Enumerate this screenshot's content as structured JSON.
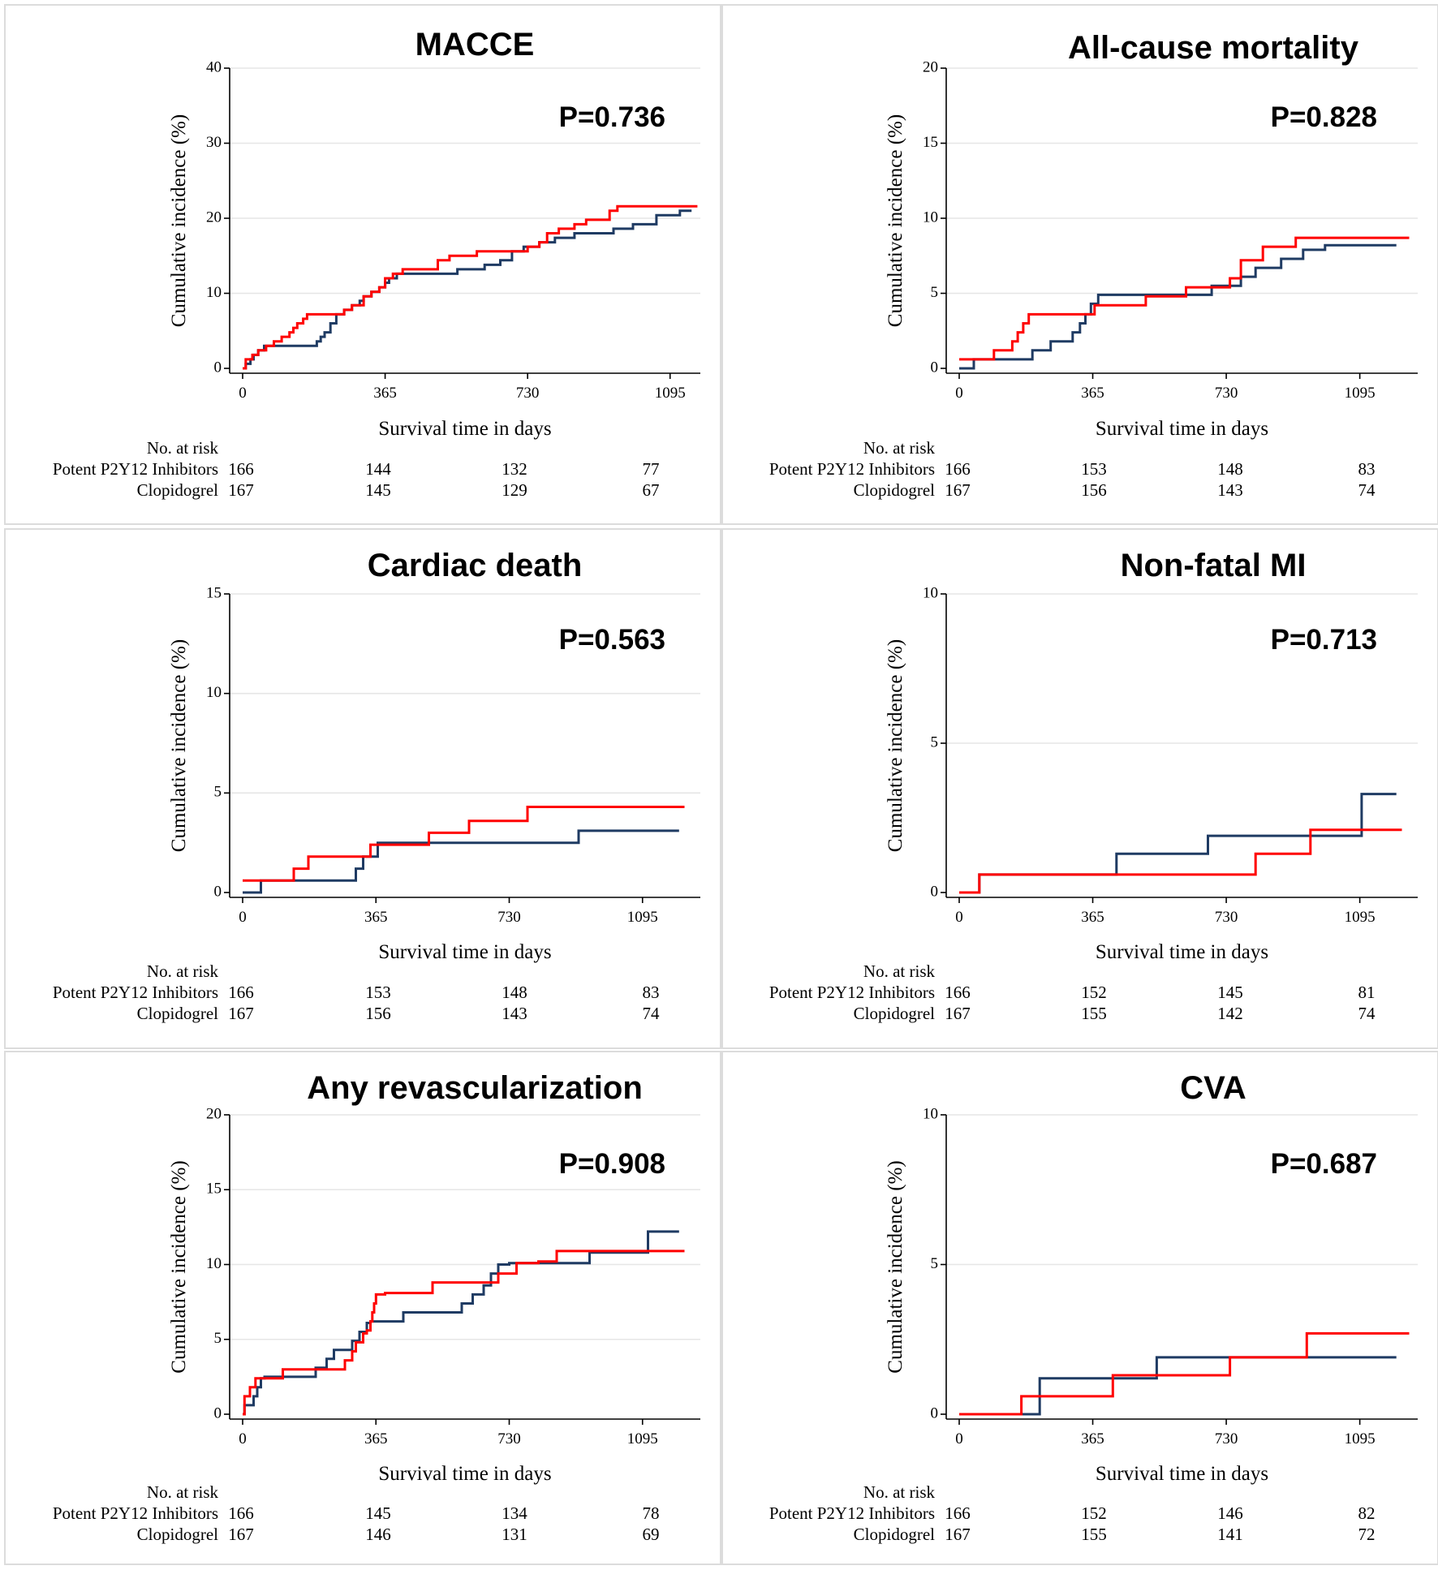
{
  "chart_data": [
    {
      "type": "line",
      "title": "MACCE",
      "pvalue": "P=0.736",
      "xlabel": "Survival time in days",
      "ylabel": "Cumulative incidence (%)",
      "xlim": [
        0,
        1160
      ],
      "ylim": [
        0,
        40
      ],
      "xticks": [
        0,
        365,
        730,
        1095
      ],
      "yticks": [
        0,
        10,
        20,
        30,
        40
      ],
      "risk_header": "No. at risk",
      "risk_rows": [
        {
          "label": "Potent P2Y12 Inhibitors",
          "values": [
            "166",
            "144",
            "132",
            "77"
          ]
        },
        {
          "label": "Clopidogrel",
          "values": [
            "167",
            "145",
            "129",
            "67"
          ]
        }
      ],
      "series": [
        {
          "name": "Clopidogrel",
          "color": "#1f3b63",
          "x": [
            0,
            8,
            20,
            28,
            40,
            55,
            190,
            200,
            210,
            225,
            240,
            260,
            280,
            300,
            310,
            330,
            350,
            365,
            375,
            395,
            420,
            450,
            550,
            620,
            660,
            690,
            720,
            760,
            800,
            850,
            900,
            950,
            1000,
            1060,
            1120,
            1150
          ],
          "y": [
            0,
            0.6,
            1.2,
            1.8,
            2.4,
            3.0,
            3.6,
            4.2,
            4.8,
            6.0,
            7.2,
            7.8,
            8.4,
            9.0,
            9.6,
            10.2,
            10.8,
            11.4,
            12.0,
            12.6,
            12.6,
            12.6,
            13.2,
            13.8,
            14.4,
            15.6,
            16.2,
            16.8,
            17.4,
            18.0,
            18.0,
            18.6,
            19.2,
            20.4,
            21.0,
            21.0
          ]
        },
        {
          "name": "Potent P2Y12 Inhibitors",
          "color": "#ff0000",
          "x": [
            0,
            8,
            25,
            40,
            60,
            80,
            100,
            120,
            130,
            140,
            155,
            165,
            175,
            185,
            200,
            260,
            280,
            310,
            330,
            350,
            365,
            385,
            410,
            500,
            530,
            600,
            680,
            730,
            760,
            780,
            810,
            850,
            880,
            940,
            960,
            1000,
            1050,
            1100,
            1165
          ],
          "y": [
            0,
            1.2,
            1.8,
            2.4,
            3.0,
            3.6,
            4.2,
            4.8,
            5.4,
            6.0,
            6.6,
            7.2,
            7.2,
            7.2,
            7.2,
            7.8,
            8.4,
            9.6,
            10.2,
            10.8,
            12.0,
            12.6,
            13.2,
            14.4,
            15.0,
            15.6,
            15.6,
            16.2,
            16.8,
            18.0,
            18.6,
            19.2,
            19.8,
            21.0,
            21.6,
            21.6,
            21.6,
            21.6,
            21.6
          ]
        }
      ]
    },
    {
      "type": "line",
      "title": "All-cause mortality",
      "pvalue": "P=0.828",
      "xlabel": "Survival time in days",
      "ylabel": "Cumulative incidence (%)",
      "xlim": [
        0,
        1240
      ],
      "ylim": [
        0,
        20
      ],
      "xticks": [
        0,
        365,
        730,
        1095
      ],
      "yticks": [
        0,
        5,
        10,
        15,
        20
      ],
      "risk_header": "No. at risk",
      "risk_rows": [
        {
          "label": "Potent P2Y12 Inhibitors",
          "values": [
            "166",
            "153",
            "148",
            "83"
          ]
        },
        {
          "label": "Clopidogrel",
          "values": [
            "167",
            "156",
            "143",
            "74"
          ]
        }
      ],
      "series": [
        {
          "name": "Clopidogrel",
          "color": "#1f3b63",
          "x": [
            0,
            40,
            200,
            250,
            310,
            330,
            345,
            360,
            380,
            560,
            690,
            770,
            810,
            880,
            940,
            1000,
            1195
          ],
          "y": [
            0,
            0.6,
            1.2,
            1.8,
            2.4,
            3.0,
            3.6,
            4.3,
            4.9,
            4.9,
            5.5,
            6.1,
            6.7,
            7.3,
            7.9,
            8.2,
            8.2
          ]
        },
        {
          "name": "Potent P2Y12 Inhibitors",
          "color": "#ff0000",
          "x": [
            0,
            95,
            145,
            160,
            175,
            190,
            370,
            510,
            620,
            740,
            770,
            830,
            920,
            1230
          ],
          "y": [
            0.6,
            1.2,
            1.8,
            2.4,
            3.0,
            3.6,
            4.2,
            4.8,
            5.4,
            6.0,
            7.2,
            8.1,
            8.7,
            8.7
          ]
        }
      ]
    },
    {
      "type": "line",
      "title": "Cardiac death",
      "pvalue": "P=0.563",
      "xlabel": "Survival time in days",
      "ylabel": "Cumulative incidence (%)",
      "xlim": [
        0,
        1240
      ],
      "ylim": [
        0,
        15
      ],
      "xticks": [
        0,
        365,
        730,
        1095
      ],
      "yticks": [
        0,
        5,
        10,
        15
      ],
      "risk_header": "No. at risk",
      "risk_rows": [
        {
          "label": "Potent P2Y12 Inhibitors",
          "values": [
            "166",
            "153",
            "148",
            "83"
          ]
        },
        {
          "label": "Clopidogrel",
          "values": [
            "167",
            "156",
            "143",
            "74"
          ]
        }
      ],
      "series": [
        {
          "name": "Clopidogrel",
          "color": "#1f3b63",
          "x": [
            0,
            50,
            310,
            330,
            370,
            920,
            1195
          ],
          "y": [
            0,
            0.6,
            1.2,
            1.8,
            2.5,
            3.1,
            3.1
          ]
        },
        {
          "name": "Potent P2Y12 Inhibitors",
          "color": "#ff0000",
          "x": [
            0,
            140,
            180,
            350,
            510,
            620,
            780,
            1210
          ],
          "y": [
            0.6,
            1.2,
            1.8,
            2.4,
            3.0,
            3.6,
            4.3,
            4.3
          ]
        }
      ]
    },
    {
      "type": "line",
      "title": "Non-fatal MI",
      "pvalue": "P=0.713",
      "xlabel": "Survival time in days",
      "ylabel": "Cumulative incidence (%)",
      "xlim": [
        0,
        1240
      ],
      "ylim": [
        0,
        10
      ],
      "xticks": [
        0,
        365,
        730,
        1095
      ],
      "yticks": [
        0,
        5,
        10
      ],
      "risk_header": "No. at risk",
      "risk_rows": [
        {
          "label": "Potent P2Y12 Inhibitors",
          "values": [
            "166",
            "152",
            "145",
            "81"
          ]
        },
        {
          "label": "Clopidogrel",
          "values": [
            "167",
            "155",
            "142",
            "74"
          ]
        }
      ],
      "series": [
        {
          "name": "Clopidogrel",
          "color": "#1f3b63",
          "x": [
            0,
            55,
            430,
            680,
            1100,
            1195
          ],
          "y": [
            0,
            0.6,
            1.3,
            1.9,
            3.3,
            3.3
          ]
        },
        {
          "name": "Potent P2Y12 Inhibitors",
          "color": "#ff0000",
          "x": [
            0,
            55,
            810,
            960,
            1210
          ],
          "y": [
            0,
            0.6,
            1.3,
            2.1,
            2.1
          ]
        }
      ]
    },
    {
      "type": "line",
      "title": "Any revascularization",
      "pvalue": "P=0.908",
      "xlabel": "Survival time in days",
      "ylabel": "Cumulative incidence (%)",
      "xlim": [
        0,
        1240
      ],
      "ylim": [
        0,
        20
      ],
      "xticks": [
        0,
        365,
        730,
        1095
      ],
      "yticks": [
        0,
        5,
        10,
        15,
        20
      ],
      "risk_header": "No. at risk",
      "risk_rows": [
        {
          "label": "Potent P2Y12 Inhibitors",
          "values": [
            "166",
            "145",
            "134",
            "78"
          ]
        },
        {
          "label": "Clopidogrel",
          "values": [
            "167",
            "146",
            "131",
            "69"
          ]
        }
      ],
      "series": [
        {
          "name": "Clopidogrel",
          "color": "#1f3b63",
          "x": [
            0,
            5,
            30,
            40,
            50,
            60,
            200,
            230,
            250,
            300,
            320,
            340,
            350,
            370,
            440,
            600,
            630,
            660,
            680,
            700,
            730,
            810,
            950,
            1110,
            1195
          ],
          "y": [
            0,
            0.6,
            1.2,
            1.8,
            2.4,
            2.5,
            3.1,
            3.7,
            4.3,
            4.9,
            5.5,
            6.1,
            6.2,
            6.2,
            6.8,
            7.4,
            8.0,
            8.6,
            9.4,
            10.0,
            10.1,
            10.1,
            10.8,
            12.2,
            12.2
          ]
        },
        {
          "name": "Potent P2Y12 Inhibitors",
          "color": "#ff0000",
          "x": [
            0,
            5,
            20,
            35,
            55,
            110,
            280,
            300,
            310,
            330,
            340,
            350,
            355,
            360,
            365,
            390,
            520,
            700,
            750,
            810,
            860,
            1210
          ],
          "y": [
            0,
            1.2,
            1.8,
            2.4,
            2.4,
            3.0,
            3.6,
            4.2,
            4.8,
            5.4,
            5.6,
            6.2,
            6.8,
            7.4,
            8.0,
            8.1,
            8.8,
            9.4,
            10.1,
            10.2,
            10.9,
            10.9
          ]
        }
      ]
    },
    {
      "type": "line",
      "title": "CVA",
      "pvalue": "P=0.687",
      "xlabel": "Survival time in days",
      "ylabel": "Cumulative incidence (%)",
      "xlim": [
        0,
        1240
      ],
      "ylim": [
        0,
        10
      ],
      "xticks": [
        0,
        365,
        730,
        1095
      ],
      "yticks": [
        0,
        5,
        10
      ],
      "risk_header": "No. at risk",
      "risk_rows": [
        {
          "label": "Potent P2Y12 Inhibitors",
          "values": [
            "166",
            "152",
            "146",
            "82"
          ]
        },
        {
          "label": "Clopidogrel",
          "values": [
            "167",
            "155",
            "141",
            "72"
          ]
        }
      ],
      "series": [
        {
          "name": "Clopidogrel",
          "color": "#1f3b63",
          "x": [
            0,
            220,
            540,
            730,
            1195
          ],
          "y": [
            0,
            1.2,
            1.9,
            1.9,
            1.9
          ]
        },
        {
          "name": "Potent P2Y12 Inhibitors",
          "color": "#ff0000",
          "x": [
            0,
            170,
            420,
            740,
            950,
            1230
          ],
          "y": [
            0,
            0.6,
            1.3,
            1.9,
            2.7,
            2.7
          ]
        }
      ]
    }
  ]
}
